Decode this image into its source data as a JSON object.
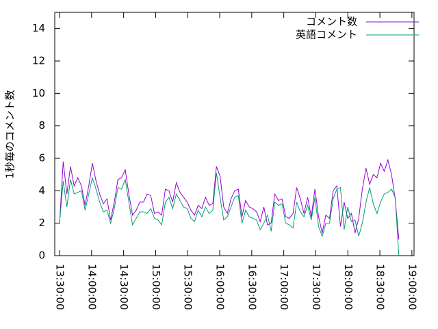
{
  "chart_data": {
    "type": "line",
    "ylabel": "1秒毎のコメント数",
    "x": [
      "13:30:00",
      "13:33:25",
      "13:36:50",
      "13:40:15",
      "13:43:40",
      "13:47:05",
      "13:50:30",
      "13:53:55",
      "13:57:20",
      "14:00:45",
      "14:04:10",
      "14:07:35",
      "14:11:00",
      "14:14:25",
      "14:17:50",
      "14:21:15",
      "14:24:40",
      "14:28:05",
      "14:31:30",
      "14:34:55",
      "14:38:20",
      "14:41:45",
      "14:45:10",
      "14:48:35",
      "14:52:00",
      "14:55:25",
      "14:58:50",
      "15:02:15",
      "15:05:40",
      "15:09:05",
      "15:12:30",
      "15:15:55",
      "15:19:20",
      "15:22:45",
      "15:26:10",
      "15:29:35",
      "15:33:00",
      "15:36:25",
      "15:39:50",
      "15:43:15",
      "15:46:40",
      "15:50:05",
      "15:53:30",
      "15:56:55",
      "16:00:20",
      "16:03:45",
      "16:07:10",
      "16:10:35",
      "16:14:00",
      "16:17:25",
      "16:20:50",
      "16:24:15",
      "16:27:40",
      "16:31:05",
      "16:34:30",
      "16:37:55",
      "16:41:20",
      "16:44:45",
      "16:48:10",
      "16:51:35",
      "16:55:00",
      "16:58:25",
      "17:01:50",
      "17:05:15",
      "17:08:40",
      "17:12:05",
      "17:15:30",
      "17:18:55",
      "17:22:20",
      "17:25:45",
      "17:29:10",
      "17:32:35",
      "17:36:00",
      "17:39:25",
      "17:42:50",
      "17:46:15",
      "17:49:40",
      "17:53:05",
      "17:56:30",
      "17:59:55",
      "18:03:20",
      "18:06:45",
      "18:10:10",
      "18:13:35",
      "18:17:00",
      "18:20:25",
      "18:23:50",
      "18:27:15",
      "18:30:40",
      "18:34:05",
      "18:37:30",
      "18:40:55",
      "18:44:20",
      "18:47:45"
    ],
    "series": [
      {
        "name": "コメント数",
        "color": "#9400d3",
        "values": [
          2.0,
          5.8,
          3.8,
          5.5,
          4.3,
          4.8,
          4.3,
          3.1,
          4.3,
          5.7,
          4.6,
          3.8,
          3.2,
          3.5,
          2.2,
          3.3,
          4.7,
          4.8,
          5.3,
          3.8,
          2.5,
          2.8,
          3.3,
          3.3,
          3.8,
          3.7,
          2.6,
          2.7,
          2.5,
          4.1,
          4.0,
          3.3,
          4.5,
          3.9,
          3.6,
          3.3,
          2.8,
          2.5,
          3.1,
          2.9,
          3.6,
          3.1,
          3.2,
          5.5,
          4.9,
          3.0,
          2.6,
          3.5,
          4.0,
          4.1,
          2.4,
          3.4,
          3.0,
          2.9,
          2.7,
          2.1,
          3.0,
          1.9,
          2.0,
          3.8,
          3.4,
          3.5,
          2.4,
          2.3,
          2.6,
          4.2,
          3.5,
          2.6,
          3.6,
          2.4,
          4.1,
          2.4,
          1.4,
          2.5,
          2.3,
          4.0,
          4.3,
          1.8,
          3.3,
          2.3,
          2.6,
          1.4,
          2.3,
          4.1,
          5.4,
          4.4,
          5.0,
          4.8,
          5.7,
          5.2,
          5.9,
          5.0,
          3.5,
          1.0
        ]
      },
      {
        "name": "英語コメント",
        "color": "#009e73",
        "values": [
          2.0,
          4.6,
          3.0,
          4.7,
          3.8,
          3.9,
          4.0,
          2.8,
          3.8,
          4.8,
          4.1,
          3.3,
          2.7,
          2.8,
          2.0,
          2.9,
          4.2,
          4.1,
          4.7,
          3.3,
          1.9,
          2.3,
          2.7,
          2.7,
          2.6,
          2.9,
          2.3,
          2.2,
          1.9,
          3.3,
          3.6,
          2.9,
          3.8,
          3.4,
          3.0,
          2.9,
          2.3,
          2.1,
          2.8,
          2.4,
          3.0,
          2.6,
          2.8,
          5.1,
          3.6,
          2.2,
          2.4,
          3.0,
          3.6,
          3.7,
          2.0,
          2.8,
          2.4,
          2.3,
          2.2,
          1.6,
          2.0,
          2.5,
          1.5,
          3.3,
          3.1,
          3.2,
          2.0,
          1.9,
          1.7,
          3.3,
          2.7,
          2.4,
          3.1,
          2.2,
          3.6,
          1.8,
          1.2,
          2.0,
          2.0,
          3.5,
          4.1,
          4.2,
          1.6,
          3.0,
          2.1,
          2.2,
          1.2,
          2.0,
          3.3,
          4.2,
          3.2,
          2.6,
          3.3,
          3.8,
          3.9,
          4.1,
          3.6,
          0.0
        ]
      }
    ],
    "xlim": [
      "13:25:30",
      "19:02:00"
    ],
    "xticks": [
      "13:30:00",
      "14:00:00",
      "14:30:00",
      "15:00:00",
      "15:30:00",
      "16:00:00",
      "16:30:00",
      "17:00:00",
      "17:30:00",
      "18:00:00",
      "18:30:00",
      "19:00:00"
    ],
    "ylim": [
      0,
      15
    ],
    "yticks": [
      0,
      2,
      4,
      6,
      8,
      10,
      12,
      14
    ],
    "legend": "top-right"
  }
}
